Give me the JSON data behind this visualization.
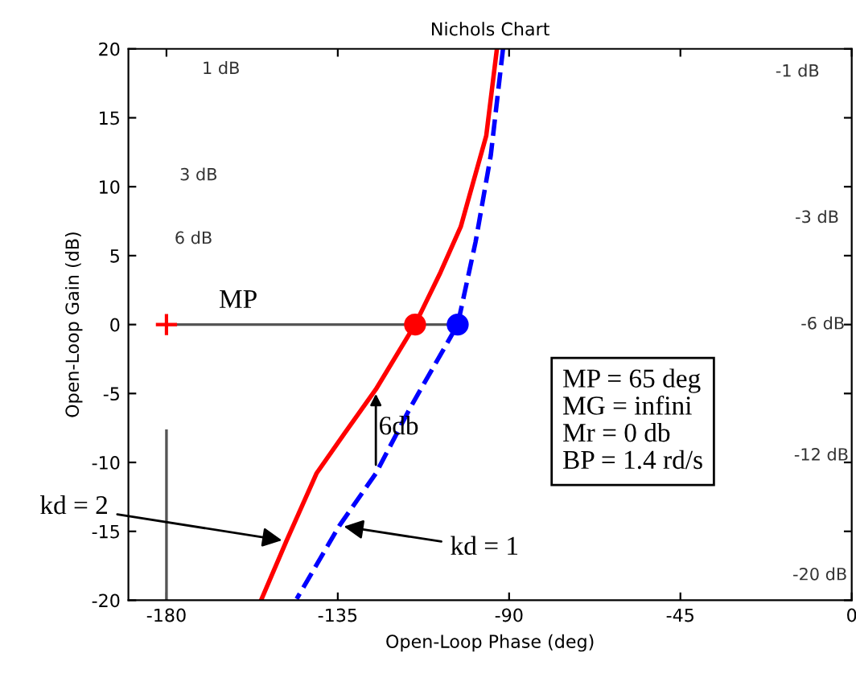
{
  "chart_data": {
    "type": "line",
    "title": "Nichols Chart",
    "xlabel": "Open-Loop Phase (deg)",
    "ylabel": "Open-Loop Gain (dB)",
    "xlim": [
      -190,
      0
    ],
    "ylim": [
      -20,
      20
    ],
    "xticks": [
      -180,
      -135,
      -90,
      -45,
      0
    ],
    "yticks": [
      -20,
      -15,
      -10,
      -5,
      0,
      5,
      10,
      15,
      20
    ],
    "grid": false,
    "legend": false,
    "series": [
      {
        "color": "#ff0000",
        "line_style": "solid",
        "x": [
          -93.2,
          -96,
          -102.7,
          -108,
          -114.7,
          -125,
          -133,
          -140.6,
          -148.5,
          -155
        ],
        "values": [
          20,
          13.7,
          7.1,
          3.8,
          0,
          -4.7,
          -7.8,
          -10.8,
          -15.7,
          -19.9
        ]
      },
      {
        "color": "#0000ff",
        "line_style": "dashed",
        "x": [
          -91.6,
          -94.8,
          -98.8,
          -103.5,
          -115.9,
          -125,
          -134.6,
          -145.8
        ],
        "values": [
          20,
          12.3,
          6,
          0,
          -6,
          -10.8,
          -14.6,
          -19.9
        ]
      },
      {
        "type": "line",
        "color": "#555555",
        "line_style": "solid",
        "x": [
          -180,
          -103.5
        ],
        "values": [
          0,
          0
        ]
      },
      {
        "type": "line",
        "color": "#555555",
        "line_style": "solid",
        "x": [
          -180,
          -180
        ],
        "values": [
          -7.7,
          -20
        ]
      },
      {
        "type": "scatter",
        "color": "#ff0000",
        "marker": "circle",
        "x": [
          -114.7
        ],
        "values": [
          0
        ]
      },
      {
        "type": "scatter",
        "color": "#0000ff",
        "marker": "circle",
        "x": [
          -103.5
        ],
        "values": [
          0
        ]
      },
      {
        "type": "scatter",
        "color": "#ff0000",
        "marker": "cross",
        "x": [
          -180
        ],
        "values": [
          0
        ]
      }
    ],
    "annotations": [
      "1 dB",
      "3 dB",
      "6 dB",
      "-1 dB",
      "-3 dB",
      "-6 dB",
      "-12 dB",
      "-20 dB",
      "MP",
      {
        "text": "6db",
        "x": -119,
        "y": -7.5
      },
      {
        "text": "kd = 2",
        "x": -148.5,
        "y": -15.7
      },
      {
        "text": "kd = 1",
        "x": -134.6,
        "y": -14.6
      },
      "MP = 65 deg\nMG = infini\nMr = 0 db\nBP = 1.4 rd/s"
    ]
  }
}
